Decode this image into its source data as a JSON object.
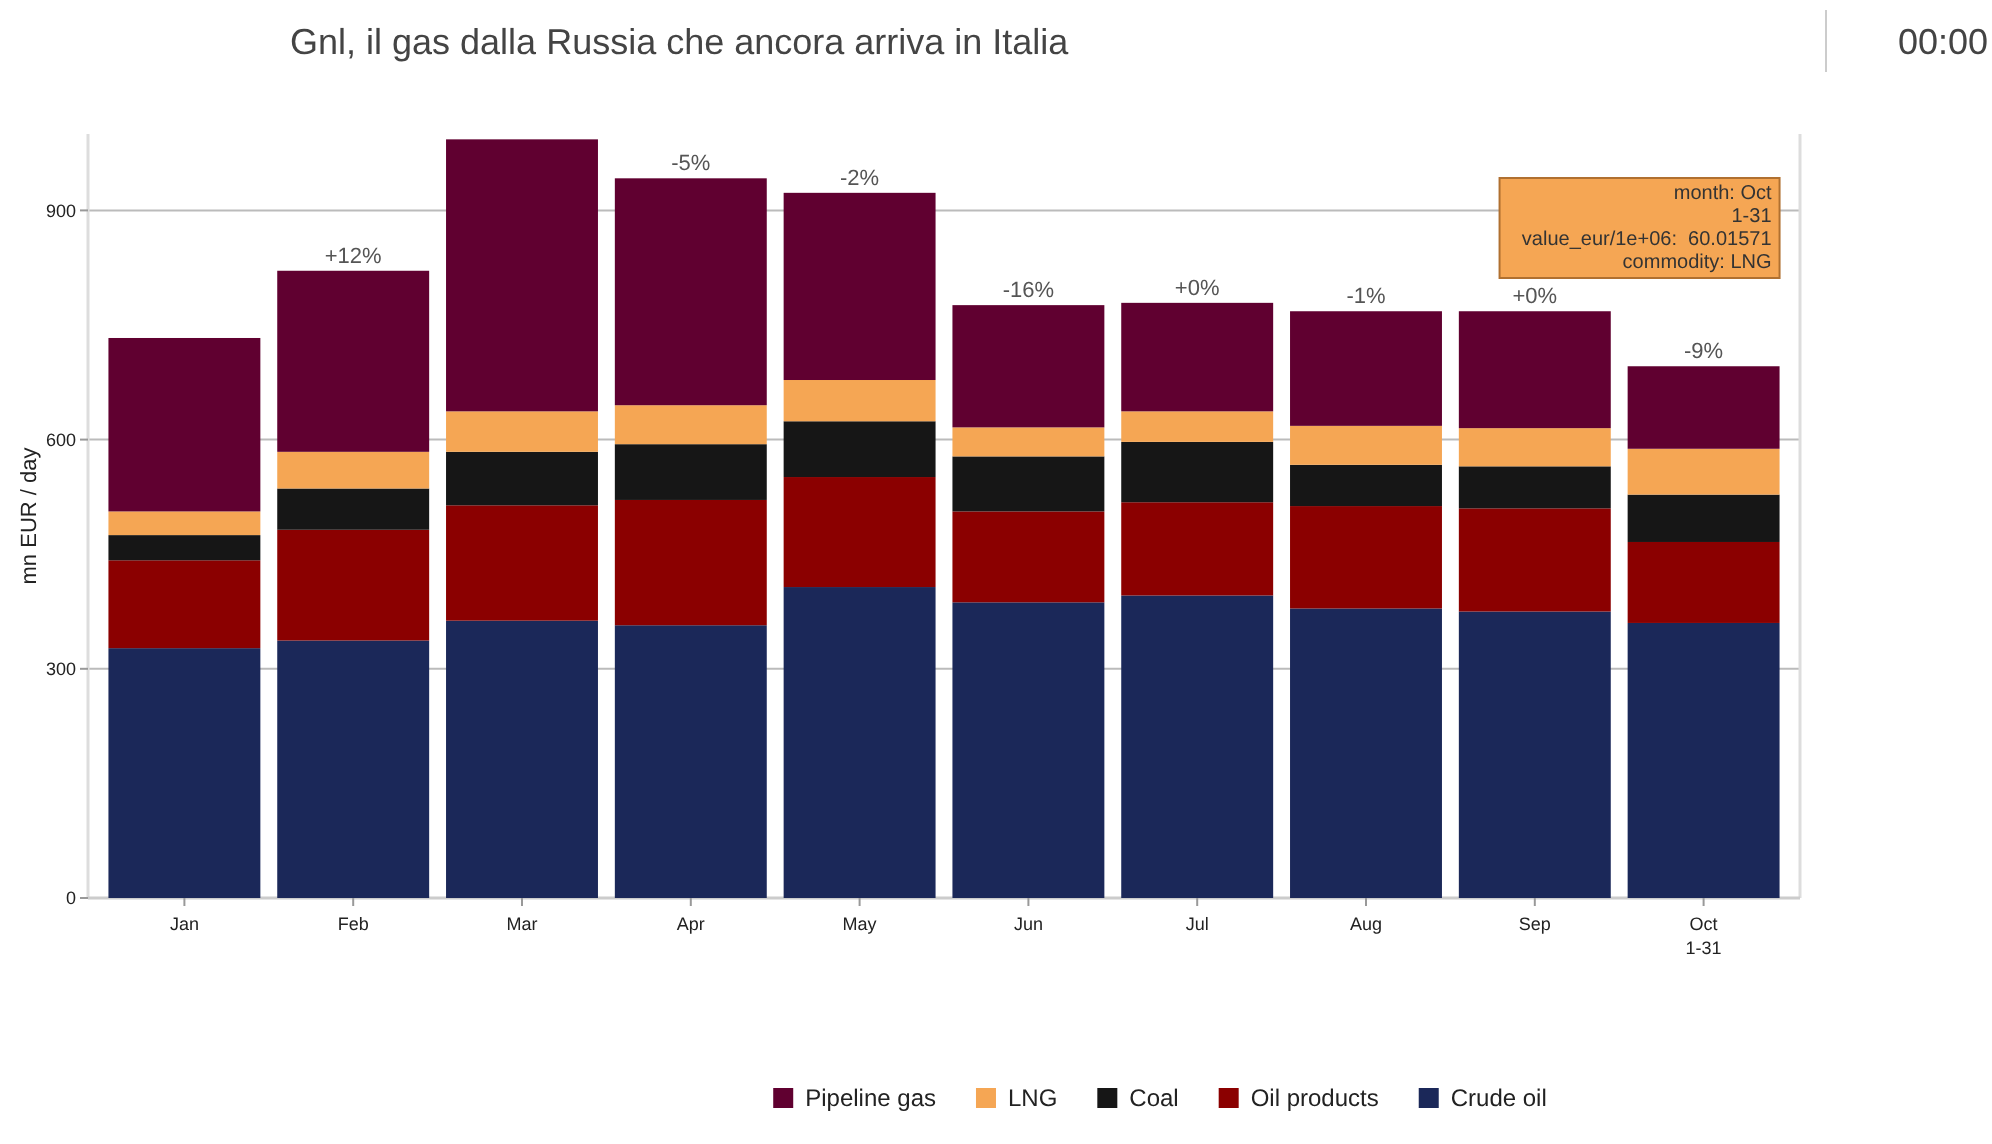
{
  "chart_data": {
    "type": "bar",
    "title": "Gnl, il gas dalla Russia che ancora arriva in Italia",
    "ylabel": "mn EUR / day",
    "stacked": true,
    "categories": [
      "Jan",
      "Feb",
      "Mar",
      "Apr",
      "May",
      "Jun",
      "Jul",
      "Aug",
      "Sep",
      "Oct\n1-31"
    ],
    "series": [
      {
        "name": "Crude oil",
        "color": "#1b2859",
        "values": [
          327,
          337,
          363,
          357,
          407,
          387,
          396,
          379,
          375,
          360
        ]
      },
      {
        "name": "Oil products",
        "color": "#8b0000",
        "values": [
          115,
          145,
          151,
          164,
          144,
          119,
          122,
          134,
          135,
          106
        ]
      },
      {
        "name": "Coal",
        "color": "#161616",
        "values": [
          33,
          54,
          70,
          73,
          73,
          72,
          79,
          54,
          55,
          62
        ]
      },
      {
        "name": "LNG",
        "color": "#f5a654",
        "values": [
          31,
          48,
          53,
          51,
          54,
          38,
          40,
          51,
          50,
          60
        ]
      },
      {
        "name": "Pipeline gas",
        "color": "#600030",
        "values": [
          227,
          237,
          356,
          297,
          245,
          160,
          142,
          150,
          153,
          108
        ]
      }
    ],
    "ylim": [
      0,
      1000
    ],
    "yticks": [
      0,
      300,
      600,
      900
    ],
    "grid": "y",
    "legend": "bottom",
    "annotations": [
      {
        "text": "+12%",
        "x": "Feb",
        "y": 821
      },
      {
        "text": "-5%",
        "x": "Apr",
        "y": 942
      },
      {
        "text": "-2%",
        "x": "May",
        "y": 923
      },
      {
        "text": "-16%",
        "x": "Jun",
        "y": 776
      },
      {
        "text": "+0%",
        "x": "Jul",
        "y": 779
      },
      {
        "text": "-1%",
        "x": "Aug",
        "y": 768
      },
      {
        "text": "+0%",
        "x": "Sep",
        "y": 768
      },
      {
        "text": "-9%",
        "x": "Oct\n1-31",
        "y": 696
      },
      "month: Oct\n1-31\nvalue_eur/1e+06:  60.01571\ncommodity: LNG",
      "00:00"
    ]
  }
}
